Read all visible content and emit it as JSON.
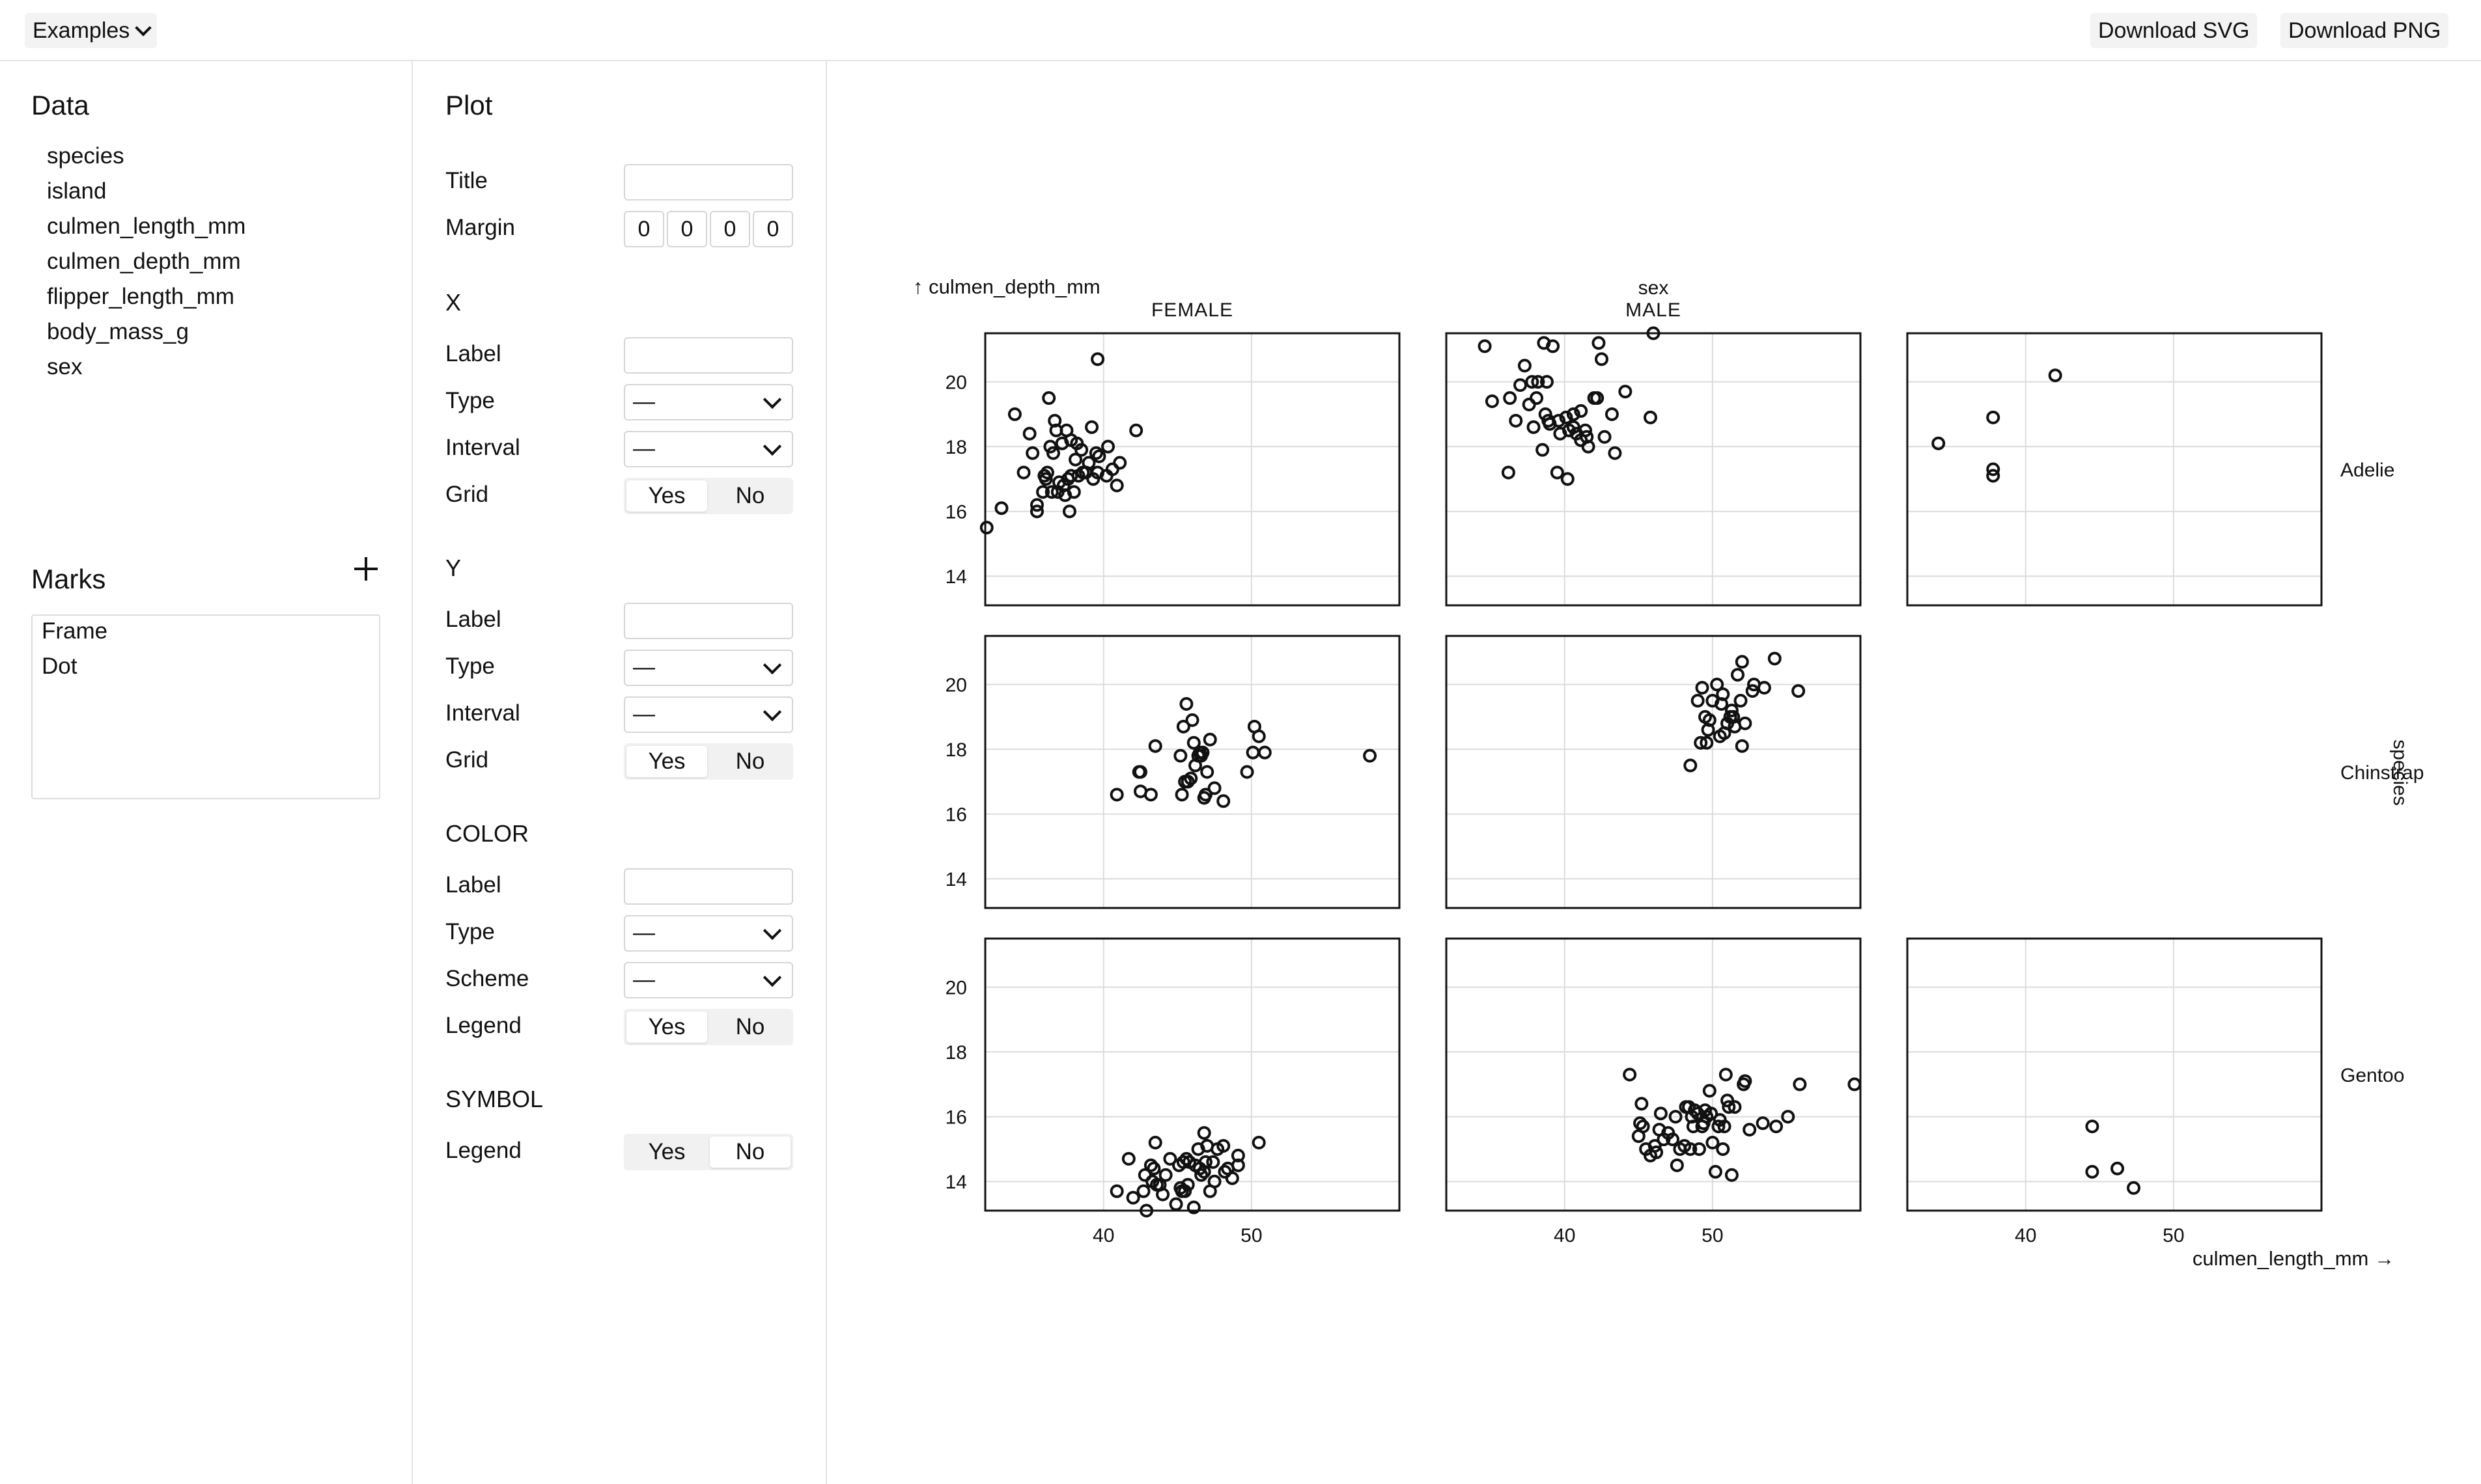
{
  "toolbar": {
    "examples_label": "Examples",
    "download_svg_label": "Download SVG",
    "download_png_label": "Download PNG"
  },
  "data_panel": {
    "title": "Data",
    "fields": [
      "species",
      "island",
      "culmen_length_mm",
      "culmen_depth_mm",
      "flipper_length_mm",
      "body_mass_g",
      "sex"
    ]
  },
  "marks_panel": {
    "title": "Marks",
    "items": [
      "Frame",
      "Dot"
    ]
  },
  "plot_panel": {
    "title": "Plot",
    "title_label": "Title",
    "title_value": "",
    "margin_label": "Margin",
    "margin_values": [
      "0",
      "0",
      "0",
      "0"
    ],
    "x": {
      "section": "X",
      "label_label": "Label",
      "label_value": "",
      "type_label": "Type",
      "type_value": "—",
      "interval_label": "Interval",
      "interval_value": "—",
      "grid_label": "Grid",
      "grid_value": "Yes"
    },
    "y": {
      "section": "Y",
      "label_label": "Label",
      "label_value": "",
      "type_label": "Type",
      "type_value": "—",
      "interval_label": "Interval",
      "interval_value": "—",
      "grid_label": "Grid",
      "grid_value": "Yes"
    },
    "color": {
      "section": "COLOR",
      "label_label": "Label",
      "label_value": "",
      "type_label": "Type",
      "type_value": "—",
      "scheme_label": "Scheme",
      "scheme_value": "—",
      "legend_label": "Legend",
      "legend_value": "Yes"
    },
    "symbol": {
      "section": "SYMBOL",
      "legend_label": "Legend",
      "legend_value": "No"
    },
    "yes_label": "Yes",
    "no_label": "No"
  },
  "chart_data": {
    "type": "scatter",
    "mark": "dot",
    "grid": true,
    "frame": true,
    "x_field": "culmen_length_mm",
    "y_field": "culmen_depth_mm",
    "xlabel": "culmen_length_mm →",
    "ylabel": "↑ culmen_depth_mm",
    "fx_label": "sex",
    "fy_label": "species",
    "xlim": [
      32,
      60
    ],
    "ylim": [
      13.1,
      21.5
    ],
    "x_ticks": [
      40,
      50
    ],
    "y_ticks": [
      14,
      16,
      18,
      20
    ],
    "columns": [
      "FEMALE",
      "MALE",
      ""
    ],
    "rows": [
      "Adelie",
      "Chinstrap",
      "Gentoo"
    ],
    "facets": [
      {
        "species": "Adelie",
        "sex": "FEMALE",
        "points": [
          [
            32.1,
            15.5
          ],
          [
            33.1,
            16.1
          ],
          [
            34.0,
            19.0
          ],
          [
            34.6,
            17.2
          ],
          [
            35.0,
            18.4
          ],
          [
            35.2,
            17.8
          ],
          [
            35.5,
            16.2
          ],
          [
            35.9,
            16.6
          ],
          [
            36.0,
            17.1
          ],
          [
            36.2,
            17.2
          ],
          [
            36.4,
            18.0
          ],
          [
            36.5,
            16.6
          ],
          [
            36.6,
            17.8
          ],
          [
            36.7,
            18.8
          ],
          [
            36.9,
            16.6
          ],
          [
            37.0,
            16.9
          ],
          [
            37.2,
            18.1
          ],
          [
            37.3,
            16.8
          ],
          [
            37.5,
            18.5
          ],
          [
            37.6,
            17.0
          ],
          [
            37.7,
            16.0
          ],
          [
            37.8,
            17.1
          ],
          [
            38.1,
            17.6
          ],
          [
            38.2,
            18.1
          ],
          [
            38.3,
            17.1
          ],
          [
            38.5,
            17.9
          ],
          [
            38.6,
            17.2
          ],
          [
            38.8,
            17.2
          ],
          [
            39.0,
            17.5
          ],
          [
            39.2,
            18.6
          ],
          [
            39.5,
            17.8
          ],
          [
            39.6,
            17.2
          ],
          [
            39.7,
            17.7
          ],
          [
            40.2,
            17.1
          ],
          [
            40.3,
            18.0
          ],
          [
            40.6,
            17.3
          ],
          [
            40.9,
            16.8
          ],
          [
            41.1,
            17.5
          ],
          [
            42.2,
            18.5
          ],
          [
            39.6,
            20.7
          ],
          [
            35.5,
            16.0
          ],
          [
            36.1,
            17.0
          ],
          [
            36.8,
            18.5
          ],
          [
            37.4,
            16.5
          ],
          [
            38.0,
            16.6
          ],
          [
            39.3,
            17.0
          ],
          [
            37.8,
            18.2
          ],
          [
            36.3,
            19.5
          ]
        ]
      },
      {
        "species": "Adelie",
        "sex": "MALE",
        "points": [
          [
            34.6,
            21.1
          ],
          [
            35.1,
            19.4
          ],
          [
            36.3,
            19.5
          ],
          [
            36.7,
            18.8
          ],
          [
            37.0,
            19.9
          ],
          [
            37.3,
            20.5
          ],
          [
            37.8,
            20.0
          ],
          [
            38.1,
            19.5
          ],
          [
            38.6,
            21.2
          ],
          [
            39.2,
            21.1
          ],
          [
            39.7,
            18.4
          ],
          [
            40.1,
            18.9
          ],
          [
            40.6,
            19.0
          ],
          [
            40.8,
            18.4
          ],
          [
            41.1,
            19.1
          ],
          [
            41.4,
            18.5
          ],
          [
            42.0,
            19.5
          ],
          [
            42.5,
            20.7
          ],
          [
            43.2,
            19.0
          ],
          [
            44.1,
            19.7
          ],
          [
            45.8,
            18.9
          ],
          [
            46.0,
            21.5
          ],
          [
            37.6,
            19.3
          ],
          [
            38.8,
            20.0
          ],
          [
            39.6,
            18.8
          ],
          [
            41.5,
            18.3
          ],
          [
            36.2,
            17.2
          ],
          [
            38.9,
            18.8
          ],
          [
            40.3,
            18.5
          ],
          [
            42.3,
            21.2
          ],
          [
            37.9,
            18.6
          ],
          [
            38.5,
            17.9
          ],
          [
            39.5,
            17.2
          ],
          [
            40.6,
            18.6
          ],
          [
            41.1,
            18.2
          ],
          [
            42.7,
            18.3
          ],
          [
            43.4,
            17.8
          ],
          [
            40.2,
            17.0
          ],
          [
            39.0,
            18.7
          ],
          [
            38.2,
            20.0
          ],
          [
            41.6,
            18.0
          ],
          [
            42.2,
            19.5
          ],
          [
            38.7,
            19.0
          ]
        ]
      },
      {
        "species": "Adelie",
        "sex": "",
        "points": [
          [
            34.1,
            18.1
          ],
          [
            37.8,
            18.9
          ],
          [
            37.8,
            17.3
          ],
          [
            37.8,
            17.1
          ],
          [
            42.0,
            20.2
          ]
        ]
      },
      {
        "species": "Chinstrap",
        "sex": "FEMALE",
        "points": [
          [
            40.9,
            16.6
          ],
          [
            42.4,
            17.3
          ],
          [
            42.5,
            16.7
          ],
          [
            43.2,
            16.6
          ],
          [
            43.5,
            18.1
          ],
          [
            45.2,
            17.8
          ],
          [
            45.4,
            18.7
          ],
          [
            45.6,
            19.4
          ],
          [
            45.7,
            17.0
          ],
          [
            45.9,
            17.1
          ],
          [
            46.0,
            18.9
          ],
          [
            46.1,
            18.2
          ],
          [
            46.4,
            17.8
          ],
          [
            46.5,
            17.9
          ],
          [
            46.6,
            17.8
          ],
          [
            46.7,
            17.9
          ],
          [
            46.8,
            16.5
          ],
          [
            47.0,
            17.3
          ],
          [
            47.5,
            16.8
          ],
          [
            48.1,
            16.4
          ],
          [
            49.7,
            17.3
          ],
          [
            50.1,
            17.9
          ],
          [
            50.2,
            18.7
          ],
          [
            50.5,
            18.4
          ],
          [
            50.9,
            17.9
          ],
          [
            58.0,
            17.8
          ],
          [
            45.5,
            17.0
          ],
          [
            46.2,
            17.5
          ],
          [
            47.2,
            18.3
          ],
          [
            45.3,
            16.6
          ],
          [
            42.5,
            17.3
          ],
          [
            46.9,
            16.6
          ]
        ]
      },
      {
        "species": "Chinstrap",
        "sex": "MALE",
        "points": [
          [
            48.5,
            17.5
          ],
          [
            49.0,
            19.5
          ],
          [
            49.2,
            18.2
          ],
          [
            49.5,
            19.0
          ],
          [
            49.6,
            18.2
          ],
          [
            49.7,
            18.6
          ],
          [
            50.0,
            19.5
          ],
          [
            50.3,
            20.0
          ],
          [
            50.5,
            18.4
          ],
          [
            50.6,
            19.4
          ],
          [
            50.8,
            18.5
          ],
          [
            51.0,
            18.8
          ],
          [
            51.3,
            19.2
          ],
          [
            51.4,
            19.0
          ],
          [
            51.5,
            18.7
          ],
          [
            51.7,
            20.3
          ],
          [
            51.9,
            19.5
          ],
          [
            52.0,
            18.1
          ],
          [
            52.0,
            20.7
          ],
          [
            52.2,
            18.8
          ],
          [
            52.7,
            19.8
          ],
          [
            53.5,
            19.9
          ],
          [
            54.2,
            20.8
          ],
          [
            55.8,
            19.8
          ],
          [
            49.8,
            18.9
          ],
          [
            50.7,
            19.7
          ],
          [
            51.2,
            19.0
          ],
          [
            52.8,
            20.0
          ],
          [
            49.3,
            19.9
          ]
        ]
      },
      {
        "species": "Gentoo",
        "sex": "FEMALE",
        "points": [
          [
            40.9,
            13.7
          ],
          [
            41.7,
            14.7
          ],
          [
            42.0,
            13.5
          ],
          [
            42.7,
            13.7
          ],
          [
            42.8,
            14.2
          ],
          [
            42.9,
            13.1
          ],
          [
            43.2,
            14.5
          ],
          [
            43.3,
            14.0
          ],
          [
            43.4,
            14.4
          ],
          [
            43.5,
            15.2
          ],
          [
            43.6,
            13.9
          ],
          [
            43.8,
            13.9
          ],
          [
            44.0,
            13.6
          ],
          [
            44.5,
            14.7
          ],
          [
            44.9,
            13.3
          ],
          [
            45.1,
            14.5
          ],
          [
            45.2,
            13.8
          ],
          [
            45.3,
            13.7
          ],
          [
            45.4,
            14.6
          ],
          [
            45.5,
            13.7
          ],
          [
            45.7,
            13.9
          ],
          [
            45.8,
            14.6
          ],
          [
            46.1,
            13.2
          ],
          [
            46.2,
            14.5
          ],
          [
            46.4,
            15.0
          ],
          [
            46.5,
            14.4
          ],
          [
            46.6,
            14.2
          ],
          [
            46.8,
            14.3
          ],
          [
            46.9,
            14.6
          ],
          [
            47.2,
            13.7
          ],
          [
            47.5,
            14.0
          ],
          [
            47.7,
            15.0
          ],
          [
            48.1,
            15.1
          ],
          [
            48.2,
            14.3
          ],
          [
            48.4,
            14.4
          ],
          [
            48.7,
            14.1
          ],
          [
            49.1,
            14.5
          ],
          [
            49.1,
            14.8
          ],
          [
            50.5,
            15.2
          ],
          [
            46.8,
            15.5
          ],
          [
            47.4,
            14.6
          ],
          [
            44.2,
            14.2
          ],
          [
            47.0,
            15.1
          ],
          [
            45.6,
            14.7
          ]
        ]
      },
      {
        "species": "Gentoo",
        "sex": "MALE",
        "points": [
          [
            44.4,
            17.3
          ],
          [
            45.0,
            15.4
          ],
          [
            45.1,
            15.8
          ],
          [
            45.2,
            16.4
          ],
          [
            45.5,
            15.0
          ],
          [
            45.8,
            14.8
          ],
          [
            46.1,
            15.1
          ],
          [
            46.4,
            15.6
          ],
          [
            46.5,
            16.1
          ],
          [
            46.7,
            15.3
          ],
          [
            47.0,
            15.5
          ],
          [
            47.3,
            15.3
          ],
          [
            47.6,
            14.5
          ],
          [
            47.8,
            15.0
          ],
          [
            48.1,
            15.1
          ],
          [
            48.2,
            16.3
          ],
          [
            48.4,
            16.3
          ],
          [
            48.5,
            15.0
          ],
          [
            48.6,
            16.0
          ],
          [
            48.7,
            15.7
          ],
          [
            49.0,
            16.1
          ],
          [
            49.1,
            15.0
          ],
          [
            49.3,
            15.7
          ],
          [
            49.5,
            16.2
          ],
          [
            49.6,
            16.0
          ],
          [
            49.8,
            16.8
          ],
          [
            49.9,
            16.1
          ],
          [
            50.0,
            15.2
          ],
          [
            50.2,
            14.3
          ],
          [
            50.4,
            15.7
          ],
          [
            50.5,
            15.9
          ],
          [
            50.8,
            15.7
          ],
          [
            50.9,
            17.3
          ],
          [
            51.1,
            16.3
          ],
          [
            51.3,
            14.2
          ],
          [
            51.5,
            16.3
          ],
          [
            52.1,
            17.0
          ],
          [
            52.2,
            17.1
          ],
          [
            52.5,
            15.6
          ],
          [
            53.4,
            15.8
          ],
          [
            54.3,
            15.7
          ],
          [
            55.1,
            16.0
          ],
          [
            55.9,
            17.0
          ],
          [
            59.6,
            17.0
          ],
          [
            48.8,
            16.2
          ],
          [
            46.2,
            14.9
          ],
          [
            47.5,
            16.0
          ],
          [
            50.7,
            15.0
          ],
          [
            51.0,
            16.5
          ],
          [
            49.4,
            15.8
          ],
          [
            45.3,
            15.7
          ]
        ]
      },
      {
        "species": "Gentoo",
        "sex": "",
        "points": [
          [
            44.5,
            15.7
          ],
          [
            44.5,
            14.3
          ],
          [
            46.2,
            14.4
          ],
          [
            47.3,
            13.8
          ]
        ]
      }
    ]
  }
}
